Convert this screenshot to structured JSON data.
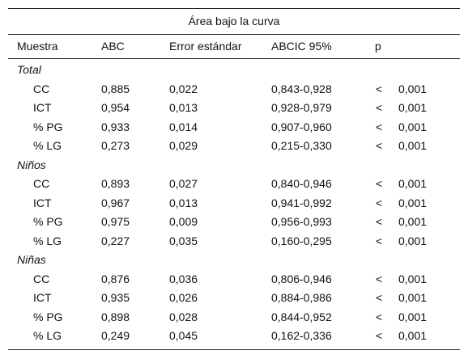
{
  "title": "Área bajo la curva",
  "headers": {
    "muestra": "Muestra",
    "abc": "ABC",
    "error": "Error estándar",
    "ic": "ABCIC 95%",
    "p": "p"
  },
  "groups": [
    {
      "label": "Total",
      "rows": [
        {
          "name": "CC",
          "abc": "0,885",
          "error": "0,022",
          "ic": "0,843-0,928",
          "lt": "<",
          "p": "0,001"
        },
        {
          "name": "ICT",
          "abc": "0,954",
          "error": "0,013",
          "ic": "0,928-0,979",
          "lt": "<",
          "p": "0,001"
        },
        {
          "name": "% PG",
          "abc": "0,933",
          "error": "0,014",
          "ic": "0,907-0,960",
          "lt": "<",
          "p": "0,001"
        },
        {
          "name": "% LG",
          "abc": "0,273",
          "error": "0,029",
          "ic": "0,215-0,330",
          "lt": "<",
          "p": "0,001"
        }
      ]
    },
    {
      "label": "Niños",
      "rows": [
        {
          "name": "CC",
          "abc": "0,893",
          "error": "0,027",
          "ic": "0,840-0,946",
          "lt": "<",
          "p": "0,001"
        },
        {
          "name": "ICT",
          "abc": "0,967",
          "error": "0,013",
          "ic": "0,941-0,992",
          "lt": "<",
          "p": "0,001"
        },
        {
          "name": "% PG",
          "abc": "0,975",
          "error": "0,009",
          "ic": "0,956-0,993",
          "lt": "<",
          "p": "0,001"
        },
        {
          "name": "% LG",
          "abc": "0,227",
          "error": "0,035",
          "ic": "0,160-0,295",
          "lt": "<",
          "p": "0,001"
        }
      ]
    },
    {
      "label": "Niñas",
      "rows": [
        {
          "name": "CC",
          "abc": "0,876",
          "error": "0,036",
          "ic": "0,806-0,946",
          "lt": "<",
          "p": "0,001"
        },
        {
          "name": "ICT",
          "abc": "0,935",
          "error": "0,026",
          "ic": "0,884-0,986",
          "lt": "<",
          "p": "0,001"
        },
        {
          "name": "% PG",
          "abc": "0,898",
          "error": "0,028",
          "ic": "0,844-0,952",
          "lt": "<",
          "p": "0,001"
        },
        {
          "name": "% LG",
          "abc": "0,249",
          "error": "0,045",
          "ic": "0,162-0,336",
          "lt": "<",
          "p": "0,001"
        }
      ]
    }
  ]
}
